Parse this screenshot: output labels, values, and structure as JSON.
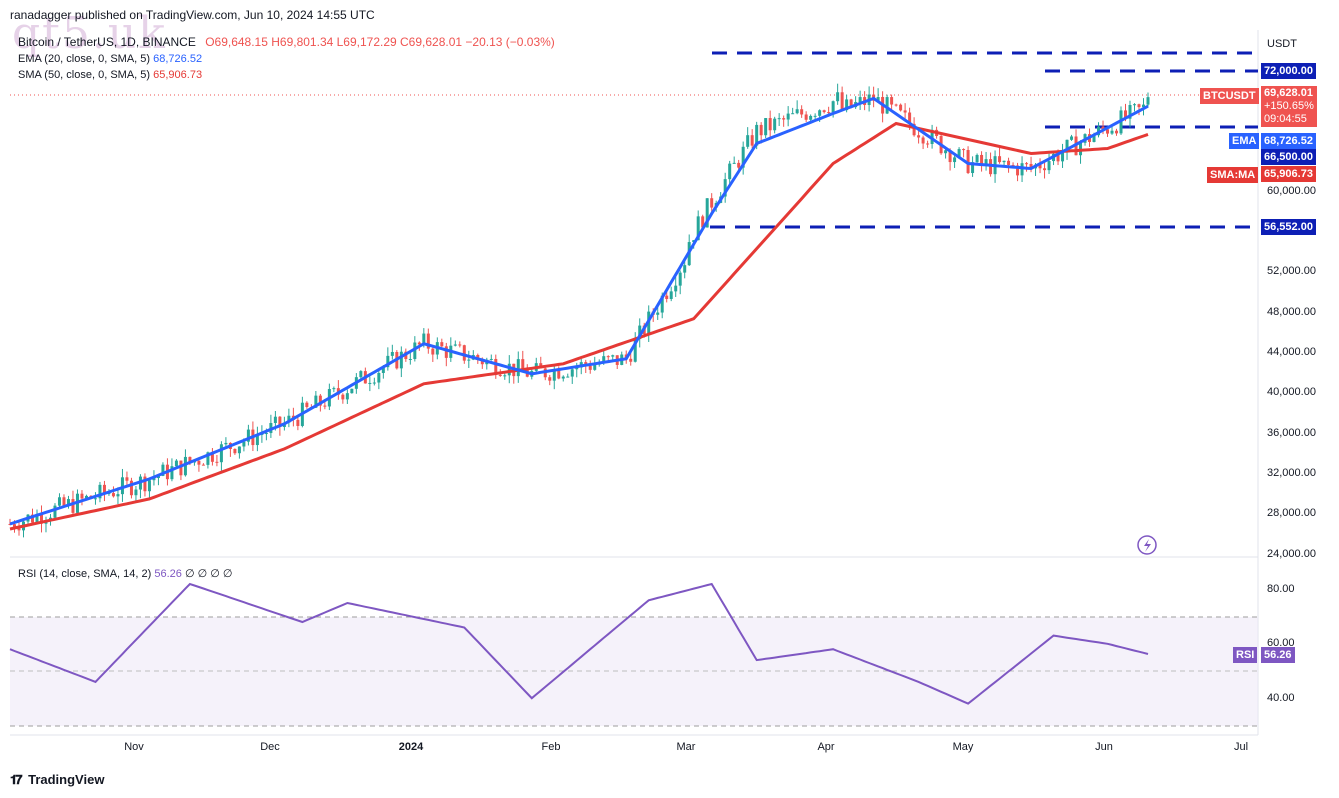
{
  "header": {
    "publisher": "ranadagger published on TradingView.com, Jun 10, 2024 14:55 UTC",
    "symbol": "Bitcoin / TetherUS, 1D, BINANCE",
    "ohlc": "O69,648.15  H69,801.34  L69,172.29  C69,628.01  −20.13 (−0.03%)",
    "watermark": "qt5.uk"
  },
  "indicators": {
    "ema_label": "EMA (20, close, 0, SMA, 5)",
    "ema_value": "68,726.52",
    "sma_label": "SMA (50, close, 0, SMA, 5)",
    "sma_value": "65,906.73",
    "rsi_label": "RSI (14, close, SMA, 14, 2)",
    "rsi_value": "56.26",
    "rsi_extra": "∅ ∅ ∅ ∅"
  },
  "price_axis": {
    "currency": "USDT",
    "ticks": [
      "24,000.00",
      "28,000.00",
      "32,000.00",
      "36,000.00",
      "40,000.00",
      "44,000.00",
      "48,000.00",
      "52,000.00",
      "60,000.00"
    ],
    "rsi_ticks": [
      "80.00",
      "60.00",
      "40.00"
    ]
  },
  "tags": {
    "level_72000": "72,000.00",
    "symbol_tag": "BTCUSDT",
    "price": "69,628.01",
    "pct": "+150.65%",
    "countdown": "09:04:55",
    "ema_tag": "EMA",
    "ema_val": "68,726.52",
    "level_66500": "66,500.00",
    "sma_tag": "SMA:MA",
    "sma_val": "65,906.73",
    "level_56552": "56,552.00",
    "rsi_tag": "RSI",
    "rsi_val": "56.26"
  },
  "time_axis": [
    "Nov",
    "Dec",
    "2024",
    "Feb",
    "Mar",
    "Apr",
    "May",
    "Jun",
    "Jul"
  ],
  "footer": {
    "brand": "TradingView"
  },
  "colors": {
    "up": "#26a69a",
    "down": "#ef5350",
    "ema": "#2962ff",
    "sma": "#e53935",
    "rsi": "#7e57c2",
    "level": "#0d1fb5",
    "price": "#ef5350"
  },
  "chart_data": {
    "type": "candlestick",
    "title": "Bitcoin / TetherUS, 1D, BINANCE",
    "ylim": [
      24000,
      76000
    ],
    "levels": [
      72000,
      66500,
      56552
    ],
    "last_close": 69628.01,
    "series": [
      {
        "name": "EMA (20)",
        "x": [
          "Oct 1",
          "Nov 1",
          "Dec 1",
          "Jan 1",
          "Jan 25",
          "Feb 15",
          "Mar 5",
          "Mar 15",
          "Apr 1",
          "Apr 10",
          "May 1",
          "May 15",
          "Jun 10"
        ],
        "values": [
          27000,
          31500,
          37000,
          45000,
          42000,
          43500,
          58000,
          65000,
          68000,
          69500,
          63000,
          62500,
          68726.52
        ]
      },
      {
        "name": "SMA (50)",
        "x": [
          "Oct 1",
          "Nov 1",
          "Dec 1",
          "Jan 1",
          "Feb 1",
          "Mar 1",
          "Apr 1",
          "Apr 15",
          "May 15",
          "Jun 1",
          "Jun 10"
        ],
        "values": [
          26500,
          29500,
          34500,
          41000,
          43000,
          47500,
          63000,
          67000,
          64000,
          64500,
          65906.73
        ]
      },
      {
        "name": "RSI (14)",
        "x": [
          "Oct 1",
          "Oct 20",
          "Nov 10",
          "Dec 5",
          "Dec 15",
          "Jan 10",
          "Jan 25",
          "Feb 20",
          "Mar 5",
          "Mar 15",
          "Apr 1",
          "Apr 20",
          "May 1",
          "May 20",
          "Jun 1",
          "Jun 10"
        ],
        "values": [
          58,
          46,
          82,
          68,
          75,
          66,
          40,
          76,
          82,
          54,
          58,
          46,
          38,
          63,
          60,
          56.26
        ]
      }
    ]
  }
}
